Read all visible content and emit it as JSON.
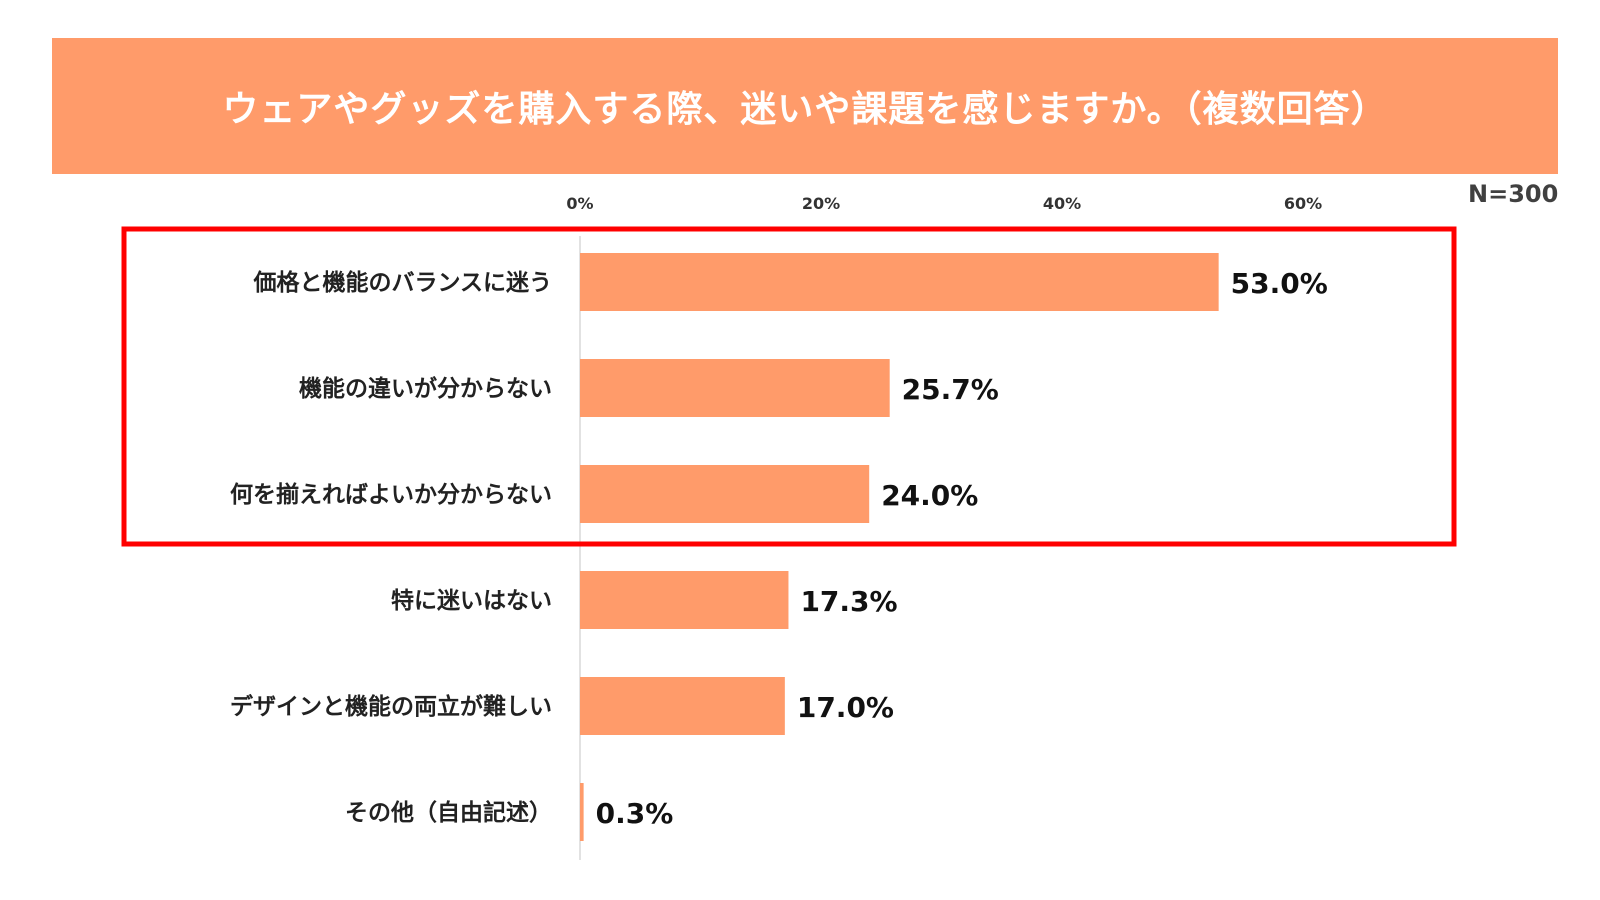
{
  "colors": {
    "title_bg": "#ff9b6a",
    "bar": "#ff9b6a",
    "highlight_box": "#ff0000",
    "axis_line": "#d9d9d9"
  },
  "title": "ウェアやグッズを購入する際、迷いや課題を感じますか。（複数回答）",
  "n_label": "N=300",
  "chart_data": {
    "type": "bar",
    "orientation": "horizontal",
    "title": "ウェアやグッズを購入する際、迷いや課題を感じますか。（複数回答）",
    "categories": [
      "価格と機能のバランスに迷う",
      "機能の違いが分からない",
      "何を揃えればよいか分からない",
      "特に迷いはない",
      "デザインと機能の両立が難しい",
      "その他（自由記述）"
    ],
    "values": [
      53.0,
      25.7,
      24.0,
      17.3,
      17.0,
      0.3
    ],
    "value_labels": [
      "53.0%",
      "25.7%",
      "24.0%",
      "17.3%",
      "17.0%",
      "0.3%"
    ],
    "x_ticks": [
      "0%",
      "20%",
      "40%",
      "60%"
    ],
    "tick_values": [
      0,
      20,
      40,
      60
    ],
    "xlim": [
      0,
      60
    ],
    "grid": false,
    "legend": "none",
    "highlighted_categories": [
      0,
      1,
      2
    ]
  }
}
